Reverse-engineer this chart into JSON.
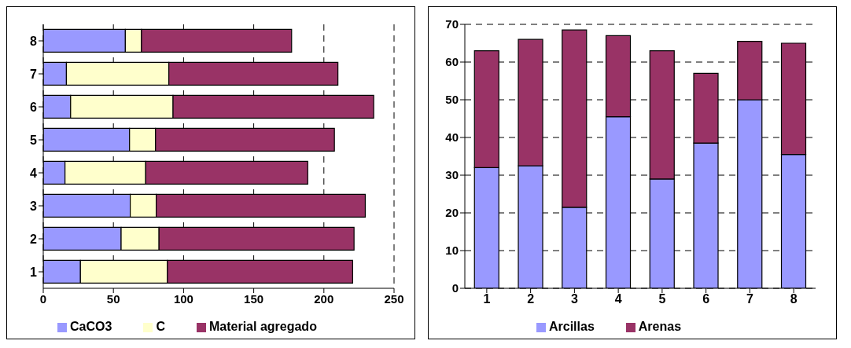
{
  "chart_data": [
    {
      "type": "bar",
      "orientation": "horizontal",
      "stacked": true,
      "categories": [
        "8",
        "7",
        "6",
        "5",
        "4",
        "3",
        "2",
        "1"
      ],
      "series": [
        {
          "name": "CaCO3",
          "color": "#9999ff",
          "values": [
            58.5,
            16.5,
            19.5,
            61.5,
            15.5,
            62,
            55.5,
            26.5
          ]
        },
        {
          "name": "C",
          "color": "#ffffcc",
          "values": [
            11.5,
            73,
            73,
            18.5,
            57.5,
            18.5,
            27,
            62
          ]
        },
        {
          "name": "Material agregado",
          "color": "#993366",
          "values": [
            107,
            120.5,
            143,
            127.5,
            115.5,
            149,
            139,
            132
          ]
        }
      ],
      "xlim": [
        0,
        250
      ],
      "xticks": [
        0,
        50,
        100,
        150,
        200,
        250
      ],
      "grid": "x",
      "legend": "bottom"
    },
    {
      "type": "bar",
      "stacked": true,
      "categories": [
        "1",
        "2",
        "3",
        "4",
        "5",
        "6",
        "7",
        "8"
      ],
      "series": [
        {
          "name": "Arcillas",
          "color": "#9999ff",
          "values": [
            32,
            32.5,
            21.5,
            45.5,
            29,
            38.5,
            50,
            35.5
          ]
        },
        {
          "name": "Arenas",
          "color": "#993366",
          "values": [
            31,
            33.5,
            47,
            21.5,
            34,
            18.5,
            15.5,
            29.5
          ]
        }
      ],
      "ylim": [
        0,
        70
      ],
      "yticks": [
        0,
        10,
        20,
        30,
        40,
        50,
        60,
        70
      ],
      "grid": "y",
      "legend": "bottom"
    }
  ]
}
